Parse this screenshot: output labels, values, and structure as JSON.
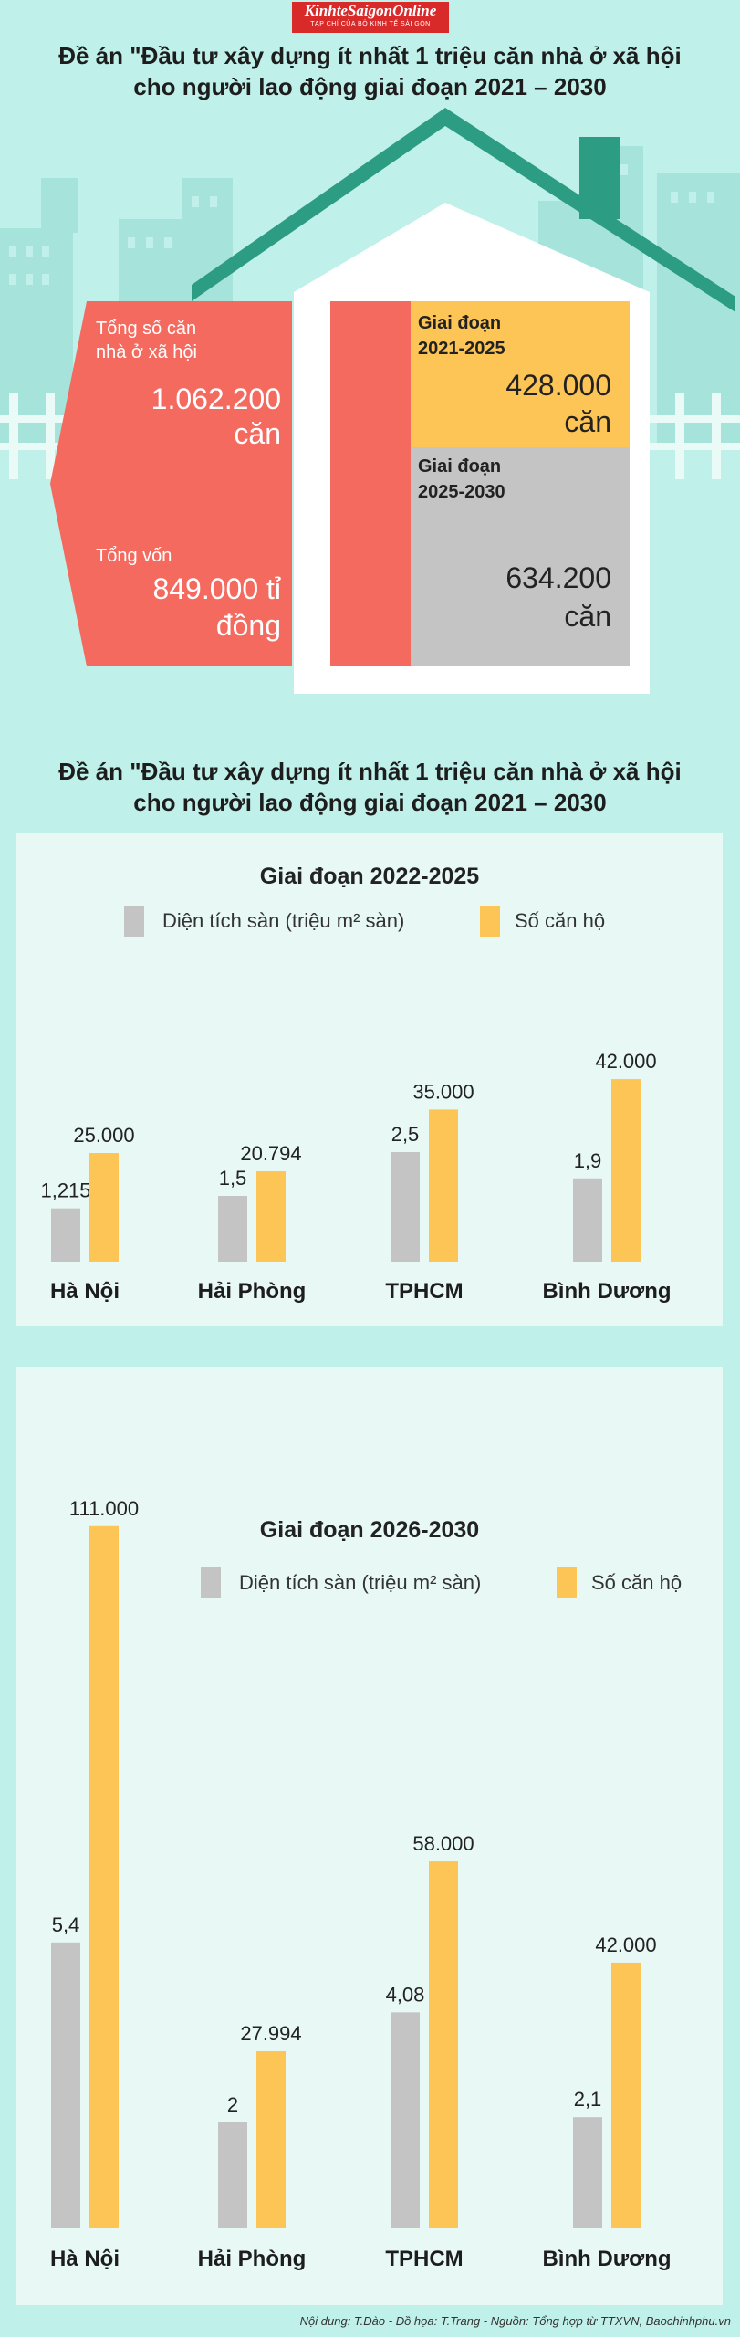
{
  "logo": {
    "name": "KinhteSaigonOnline",
    "tagline": "TẠP CHÍ CỦA BỘ KINH TẾ SÀI GÒN"
  },
  "title1": {
    "line1": "Đề án \"Đầu tư xây dựng ít nhất 1 triệu căn nhà ở xã hội",
    "line2": "cho người lao động giai đoạn 2021 – 2030"
  },
  "title2": {
    "line1": "Đề án \"Đầu tư xây dựng ít nhất 1 triệu căn nhà ở xã hội",
    "line2": "cho người lao động giai đoạn 2021 – 2030"
  },
  "summary": {
    "total_label1": "Tổng số căn",
    "total_label2": "nhà ở xã hội",
    "total_value": "1.062.200",
    "total_unit": "căn",
    "capital_label": "Tổng vốn",
    "capital_value": "849.000 tỉ",
    "capital_unit": "đồng",
    "p1_label1": "Giai đoạn",
    "p1_label2": "2021-2025",
    "p1_value": "428.000",
    "p1_unit": "căn",
    "p2_label1": "Giai đoạn",
    "p2_label2": "2025-2030",
    "p2_value": "634.200",
    "p2_unit": "căn"
  },
  "colors": {
    "gray": "#c4c4c4",
    "yellow": "#fdc555",
    "red": "#f46a5f",
    "teal_bg": "#bff0ea"
  },
  "chart_data": [
    {
      "type": "bar",
      "title": "Giai đoạn 2022-2025",
      "legend": [
        "Diện tích sàn (triệu m² sàn)",
        "Số căn hộ"
      ],
      "categories": [
        "Hà Nội",
        "Hải Phòng",
        "TPHCM",
        "Bình Dương"
      ],
      "series": [
        {
          "name": "Diện tích sàn (triệu m² sàn)",
          "values": [
            1.215,
            1.5,
            2.5,
            1.9
          ],
          "labels": [
            "1,215",
            "1,5",
            "2,5",
            "1,9"
          ]
        },
        {
          "name": "Số căn hộ",
          "values": [
            25000,
            20794,
            35000,
            42000
          ],
          "labels": [
            "25.000",
            "20.794",
            "35.000",
            "42.000"
          ]
        }
      ]
    },
    {
      "type": "bar",
      "title": "Giai đoạn 2026-2030",
      "legend": [
        "Diện tích sàn (triệu m² sàn)",
        "Số căn hộ"
      ],
      "categories": [
        "Hà Nội",
        "Hải Phòng",
        "TPHCM",
        "Bình Dương"
      ],
      "series": [
        {
          "name": "Diện tích sàn (triệu m² sàn)",
          "values": [
            5.4,
            2,
            4.08,
            2.1
          ],
          "labels": [
            "5,4",
            "2",
            "4,08",
            "2,1"
          ]
        },
        {
          "name": "Số căn hộ",
          "values": [
            111000,
            27994,
            58000,
            42000
          ],
          "labels": [
            "111.000",
            "27.994",
            "58.000",
            "42.000"
          ]
        }
      ]
    }
  ],
  "footer": "Nội dung: T.Đào - Đồ họa: T.Trang - Nguồn: Tổng hợp từ TTXVN, Baochinhphu.vn"
}
